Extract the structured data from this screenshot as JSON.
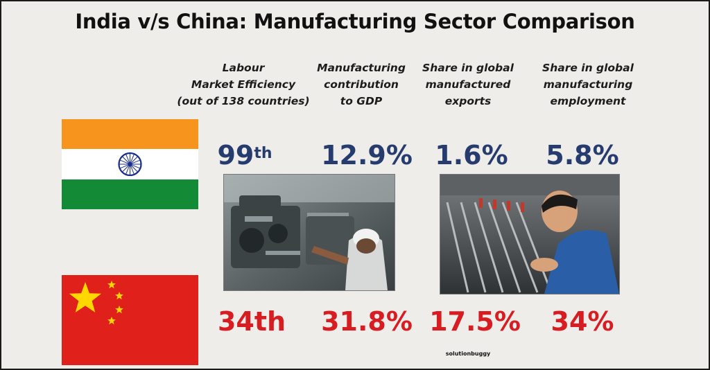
{
  "title": "India v/s China: Manufacturing Sector Comparison",
  "columns": [
    {
      "header": "Labour\nMarket Efficiency\n(out of 138 countries)",
      "india": "99",
      "india_sup": "th",
      "china": "34th"
    },
    {
      "header": "Manufacturing\ncontribution\nto GDP",
      "india": "12.9%",
      "india_sup": "",
      "china": "31.8%"
    },
    {
      "header": "Share in global\nmanufactured\nexports",
      "india": "1.6%",
      "india_sup": "",
      "china": "17.5%"
    },
    {
      "header": "Share in global\nmanufacturing\nemployment",
      "india": "5.8%",
      "india_sup": "",
      "china": "34%"
    }
  ],
  "flags": [
    {
      "country": "India",
      "icon": "india-flag-icon"
    },
    {
      "country": "China",
      "icon": "china-flag-icon"
    }
  ],
  "photos": [
    "factory-engine-worker-photo",
    "factory-assembly-worker-photo"
  ],
  "watermark": "solutionbuggy",
  "colors": {
    "background": "#efedea",
    "india_value": "#263c6e",
    "china_value": "#d81d22",
    "saffron": "#f7941d",
    "green": "#138a36",
    "navy_chakra": "#1a2d8a",
    "china_red": "#e0201b",
    "china_star": "#ffd800"
  }
}
